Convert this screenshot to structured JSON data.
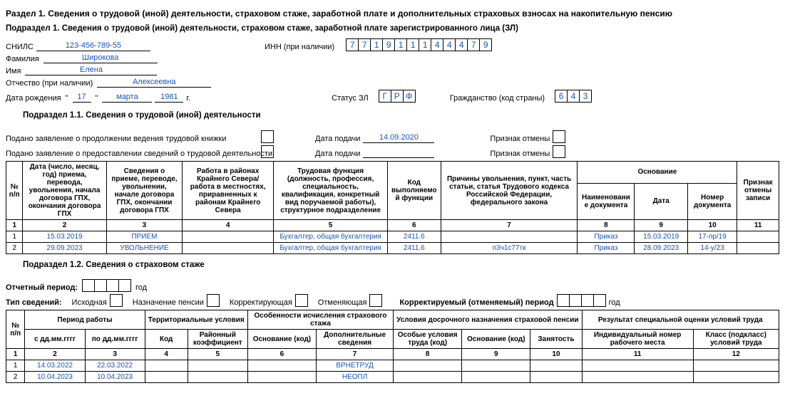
{
  "section1_title": "Раздел 1. Сведения о трудовой (иной) деятельности, страховом стаже, заработной плате и дополнительных страховых взносах на накопительную пенсию",
  "subsection1_title": "Подраздел 1. Сведения о трудовой (иной) деятельности, страховом стаже, заработной плате зарегистрированного лица (ЗЛ)",
  "labels": {
    "snils": "СНИЛС",
    "inn": "ИНН (при наличии)",
    "surname": "Фамилия",
    "name": "Имя",
    "patronymic": "Отчество (при наличии)",
    "dob": "Дата рождения",
    "year_suffix": "г.",
    "status": "Статус ЗЛ",
    "citizenship": "Гражданство (код страны)"
  },
  "person": {
    "snils": "123-456-789-55",
    "inn": [
      "7",
      "7",
      "1",
      "9",
      "1",
      "1",
      "1",
      "4",
      "4",
      "4",
      "7",
      "9"
    ],
    "surname": "Широкова",
    "name": "Елена",
    "patronymic": "Алексеевна",
    "dob_day": "17",
    "dob_month": "марта",
    "dob_year": "1981",
    "status": [
      "Г",
      "Р",
      "Ф"
    ],
    "citizenship": [
      "6",
      "4",
      "3"
    ]
  },
  "sub11_title": "Подраздел 1.1. Сведения о трудовой (иной) деятельности",
  "filings": {
    "continue_label": "Подано заявление о продолжении ведения трудовой книжки",
    "info_label": "Подано заявление о предоставлении сведений о трудовой деятельности",
    "date_label": "Дата подачи",
    "cancel_label": "Признак отмены",
    "continue_date": "14.09.2020",
    "info_date": ""
  },
  "t1": {
    "headers": {
      "n": "№ п/п",
      "c2": "Дата (число, месяц, год) приема, перевода, увольнения, начала договора ГПХ, окончания договора ГПХ",
      "c3": "Сведения о приеме, переводе, увольнении, начале договора ГПХ, окончании договора ГПХ",
      "c4": "Работа в районах Крайнего Севера/работа в местностях, приравненных к районам Крайнего Севера",
      "c5": "Трудовая функция (должность, профессия, специальность, квалификация, конкретный вид поручаемой работы), структурное подразделение",
      "c6": "Код выполняемой функции",
      "c7": "Причины увольнения, пункт, часть статьи, статья Трудового кодекса Российской Федерации, федерального закона",
      "basis": "Основание",
      "c8": "Наименование документа",
      "c9": "Дата",
      "c10": "Номер документа",
      "c11": "Признак отмены записи"
    },
    "idx": [
      "1",
      "2",
      "3",
      "4",
      "5",
      "6",
      "7",
      "8",
      "9",
      "10",
      "11"
    ],
    "rows": [
      {
        "n": "1",
        "c2": "15.03.2019",
        "c3": "ПРИЕМ",
        "c4": "",
        "c5": "Бухгалтер, общая бухгалтерия",
        "c6": "2411.6",
        "c7": "",
        "c8": "Приказ",
        "c9": "15.03.2019",
        "c10": "17-пр/19",
        "c11": ""
      },
      {
        "n": "2",
        "c2": "29.09.2023",
        "c3": "УВОЛЬНЕНИЕ",
        "c4": "",
        "c5": "Бухгалтер, общая бухгалтерия",
        "c6": "2411.6",
        "c7": "п3ч1с77тк",
        "c8": "Приказ",
        "c9": "28.09.2023",
        "c10": "14-у/23",
        "c11": ""
      }
    ]
  },
  "sub12_title": "Подраздел 1.2. Сведения о страховом стаже",
  "period": {
    "label": "Отчетный период:",
    "year": "год"
  },
  "info_type": {
    "label": "Тип сведений:",
    "initial": "Исходная",
    "pension": "Назначение пенсии",
    "correcting": "Корректирующая",
    "cancelling": "Отменяющая",
    "period_label": "Корректируемый (отменяемый) период",
    "year": "год"
  },
  "t2": {
    "headers": {
      "n": "№ п/п",
      "period": "Период работы",
      "from": "с дд.мм.гггг",
      "to": "по дд.мм.гггг",
      "terr": "Территориальные условия",
      "code": "Код",
      "coef": "Районный коэффициент",
      "feat": "Особенности исчисления страхового стажа",
      "basis_code": "Основание (код)",
      "add_info": "Дополнительные сведения",
      "early": "Условия досрочного назначения страховой пенсии",
      "special": "Особые условия труда (код)",
      "basis_code2": "Основание (код)",
      "employment": "Занятость",
      "result": "Результат специальной оценки условий труда",
      "ind_num": "Индивидуальный номер рабочего места",
      "class": "Класс (подкласс) условий труда"
    },
    "idx": [
      "1",
      "2",
      "3",
      "4",
      "5",
      "6",
      "7",
      "8",
      "9",
      "10",
      "11",
      "12"
    ],
    "rows": [
      {
        "n": "1",
        "from": "14.03.2022",
        "to": "22.03.2022",
        "c4": "",
        "c5": "",
        "c6": "",
        "c7": "ВРНЕТРУД",
        "c8": "",
        "c9": "",
        "c10": "",
        "c11": "",
        "c12": ""
      },
      {
        "n": "2",
        "from": "10.04.2023",
        "to": "10.04.2023",
        "c4": "",
        "c5": "",
        "c6": "",
        "c7": "НЕОПЛ",
        "c8": "",
        "c9": "",
        "c10": "",
        "c11": "",
        "c12": ""
      }
    ]
  },
  "colors": {
    "link": "#1455c0",
    "border": "#000000",
    "bg": "#ffffff"
  }
}
